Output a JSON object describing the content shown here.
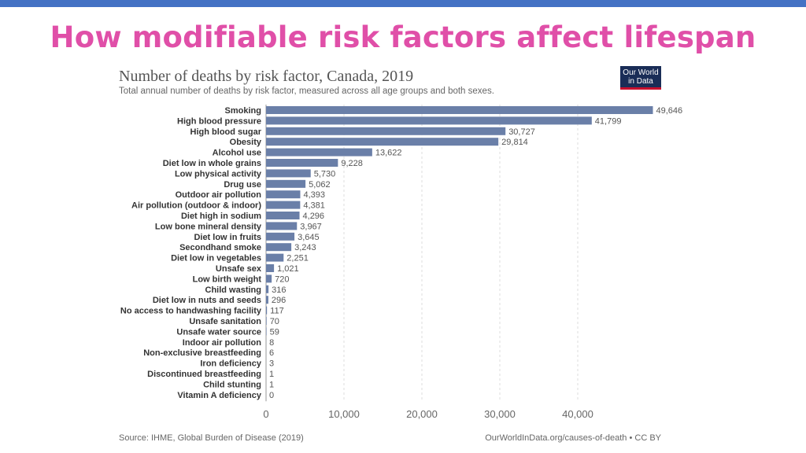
{
  "slide": {
    "title": "How modifiable risk factors affect lifespan",
    "accent_color": "#e04fa8",
    "bar_color": "#4472c4"
  },
  "logo": {
    "line1": "Our World",
    "line2": "in Data",
    "bg_color": "#1a2d57",
    "underline_color": "#c8102e"
  },
  "footer": {
    "source": "Source: IHME, Global Burden of Disease (2019)",
    "credit": "OurWorldInData.org/causes-of-death • CC BY"
  },
  "chart_data": {
    "type": "bar",
    "orientation": "horizontal",
    "title": "Number of deaths by risk factor, Canada, 2019",
    "subtitle": "Total annual number of deaths by risk factor, measured across all age groups and both sexes.",
    "bar_color": "#6a7fa8",
    "grid": true,
    "xlim": [
      0,
      50000
    ],
    "x_ticks": [
      0,
      10000,
      20000,
      30000,
      40000
    ],
    "x_tick_labels": [
      "0",
      "10,000",
      "20,000",
      "30,000",
      "40,000"
    ],
    "categories": [
      "Smoking",
      "High blood pressure",
      "High blood sugar",
      "Obesity",
      "Alcohol use",
      "Diet low in whole grains",
      "Low physical activity",
      "Drug use",
      "Outdoor air pollution",
      "Air pollution (outdoor & indoor)",
      "Diet high in sodium",
      "Low bone mineral density",
      "Diet low in fruits",
      "Secondhand smoke",
      "Diet low in vegetables",
      "Unsafe sex",
      "Low birth weight",
      "Child wasting",
      "Diet low in nuts and seeds",
      "No access to handwashing facility",
      "Unsafe sanitation",
      "Unsafe water source",
      "Indoor air pollution",
      "Non-exclusive breastfeeding",
      "Iron deficiency",
      "Discontinued breastfeeding",
      "Child stunting",
      "Vitamin A deficiency"
    ],
    "values": [
      49646,
      41799,
      30727,
      29814,
      13622,
      9228,
      5730,
      5062,
      4393,
      4381,
      4296,
      3967,
      3645,
      3243,
      2251,
      1021,
      720,
      316,
      296,
      117,
      70,
      59,
      8,
      6,
      3,
      1,
      1,
      0
    ],
    "value_labels": [
      "49,646",
      "41,799",
      "30,727",
      "29,814",
      "13,622",
      "9,228",
      "5,730",
      "5,062",
      "4,393",
      "4,381",
      "4,296",
      "3,967",
      "3,645",
      "3,243",
      "2,251",
      "1,021",
      "720",
      "316",
      "296",
      "117",
      "70",
      "59",
      "8",
      "6",
      "3",
      "1",
      "1",
      "0"
    ]
  }
}
